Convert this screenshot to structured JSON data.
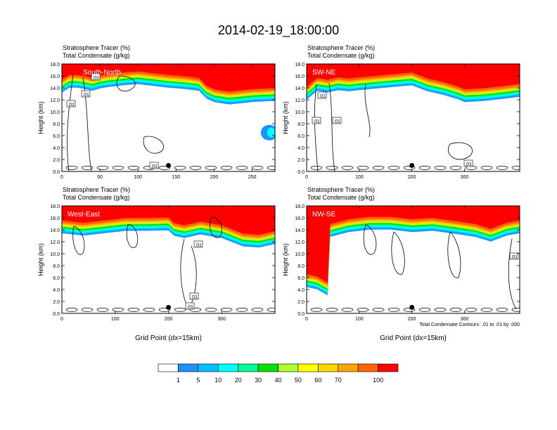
{
  "figure": {
    "title": "2014-02-19_18:00:00",
    "contour_note": "Total Condensate Contours: .01 to .01 by .000"
  },
  "chart_data": [
    {
      "type": "heatmap",
      "panel": "South-North",
      "variable_lines": [
        "Stratosphere Tracer   (%)",
        "Total Condensate   (g/kg)"
      ],
      "ylabel": "Height (km)",
      "xlabel": "",
      "x_ticks": [
        0,
        50,
        100,
        150,
        200,
        250
      ],
      "xlim": [
        0,
        280
      ],
      "y_ticks": [
        "0.0",
        "2.0",
        "4.0",
        "6.0",
        "8.0",
        "10.0",
        "12.0",
        "14.0",
        "16.0",
        "18.0"
      ],
      "ylim": [
        0,
        18
      ],
      "contour_labels": [
        ".01",
        ".01",
        ".01",
        ".01"
      ],
      "tracer_top": [
        [
          0,
          15.2
        ],
        [
          10,
          16.0
        ],
        [
          20,
          16.0
        ],
        [
          30,
          15.8
        ],
        [
          40,
          15.5
        ],
        [
          50,
          15.9
        ],
        [
          60,
          16.1
        ],
        [
          80,
          16.4
        ],
        [
          100,
          16.6
        ],
        [
          120,
          16.3
        ],
        [
          140,
          16.0
        ],
        [
          160,
          15.8
        ],
        [
          180,
          15.5
        ],
        [
          190,
          14.2
        ],
        [
          200,
          13.6
        ],
        [
          220,
          13.2
        ],
        [
          250,
          13.6
        ],
        [
          280,
          13.8
        ]
      ],
      "tracer_bump": {
        "x": [
          265,
          280
        ],
        "y": [
          5.2,
          7.8
        ]
      },
      "marker": {
        "x": 140,
        "y": 1.0
      }
    },
    {
      "type": "heatmap",
      "panel": "SW-NE",
      "variable_lines": [
        "Stratosphere Tracer   (%)",
        "Total Condensate   (g/kg)"
      ],
      "ylabel": "Height (km)",
      "xlabel": "",
      "x_ticks": [
        0,
        100,
        200,
        300
      ],
      "xlim": [
        0,
        405
      ],
      "y_ticks": [
        "0.0",
        "2.0",
        "4.0",
        "6.0",
        "8.0",
        "10.0",
        "12.0",
        "14.0",
        "16.0",
        "18.0"
      ],
      "ylim": [
        0,
        18
      ],
      "contour_labels": [
        ".01",
        ".01",
        ".01",
        ".01"
      ],
      "tracer_top": [
        [
          0,
          14.0
        ],
        [
          20,
          15.5
        ],
        [
          40,
          15.2
        ],
        [
          60,
          15.6
        ],
        [
          80,
          15.4
        ],
        [
          100,
          15.6
        ],
        [
          150,
          16.0
        ],
        [
          200,
          16.4
        ],
        [
          230,
          15.4
        ],
        [
          260,
          14.8
        ],
        [
          290,
          14.0
        ],
        [
          300,
          13.6
        ],
        [
          340,
          13.8
        ],
        [
          380,
          14.2
        ],
        [
          405,
          14.5
        ]
      ],
      "marker": {
        "x": 200,
        "y": 1.0
      }
    },
    {
      "type": "heatmap",
      "panel": "West-East",
      "variable_lines": [
        "Stratosphere Tracer   (%)",
        "Total Condensate   (g/kg)"
      ],
      "ylabel": "Height (km)",
      "xlabel": "Grid Point (dx=15km)",
      "x_ticks": [
        0,
        100,
        200,
        300
      ],
      "xlim": [
        0,
        400
      ],
      "y_ticks": [
        "0.0",
        "2.0",
        "4.0",
        "6.0",
        "8.0",
        "10.0",
        "12.0",
        "14.0",
        "16.0",
        "18.0"
      ],
      "ylim": [
        0,
        18
      ],
      "contour_labels": [
        ".01",
        ".01",
        ".01"
      ],
      "tracer_top": [
        [
          0,
          15.4
        ],
        [
          40,
          15.0
        ],
        [
          80,
          15.4
        ],
        [
          120,
          15.8
        ],
        [
          160,
          15.8
        ],
        [
          200,
          15.9
        ],
        [
          210,
          15.0
        ],
        [
          230,
          14.6
        ],
        [
          260,
          15.2
        ],
        [
          300,
          14.6
        ],
        [
          340,
          13.2
        ],
        [
          370,
          13.0
        ],
        [
          400,
          13.6
        ]
      ],
      "marker": {
        "x": 200,
        "y": 1.0
      }
    },
    {
      "type": "heatmap",
      "panel": "NW-SE",
      "variable_lines": [
        "Stratosphere Tracer   (%)",
        "Total Condensate   (g/kg)"
      ],
      "ylabel": "Height (km)",
      "xlabel": "Grid Point (dx=15km)",
      "x_ticks": [
        0,
        100,
        200,
        300
      ],
      "xlim": [
        0,
        405
      ],
      "y_ticks": [
        "0.0",
        "2.0",
        "4.0",
        "6.0",
        "8.0",
        "10.0",
        "12.0",
        "14.0",
        "16.0",
        "18.0"
      ],
      "ylim": [
        0,
        18
      ],
      "contour_labels": [
        ".01"
      ],
      "tracer_top": [
        [
          0,
          6.4
        ],
        [
          20,
          6.0
        ],
        [
          40,
          5.0
        ],
        [
          45,
          14.8
        ],
        [
          80,
          15.6
        ],
        [
          120,
          16.0
        ],
        [
          160,
          16.0
        ],
        [
          200,
          15.6
        ],
        [
          240,
          15.8
        ],
        [
          290,
          15.2
        ],
        [
          320,
          14.8
        ],
        [
          350,
          14.0
        ],
        [
          380,
          15.0
        ],
        [
          405,
          15.4
        ]
      ],
      "marker": {
        "x": 200,
        "y": 1.0
      }
    }
  ],
  "colorbar": {
    "labels": [
      "1",
      "5",
      "10",
      "20",
      "30",
      "40",
      "50",
      "60",
      "70",
      "100"
    ],
    "colors": [
      "#ffffff",
      "#1e90ff",
      "#00bfff",
      "#00ffff",
      "#00fa9a",
      "#00e000",
      "#adff2f",
      "#ffff00",
      "#ffd700",
      "#ffa500",
      "#ff6600",
      "#ff0000"
    ]
  }
}
